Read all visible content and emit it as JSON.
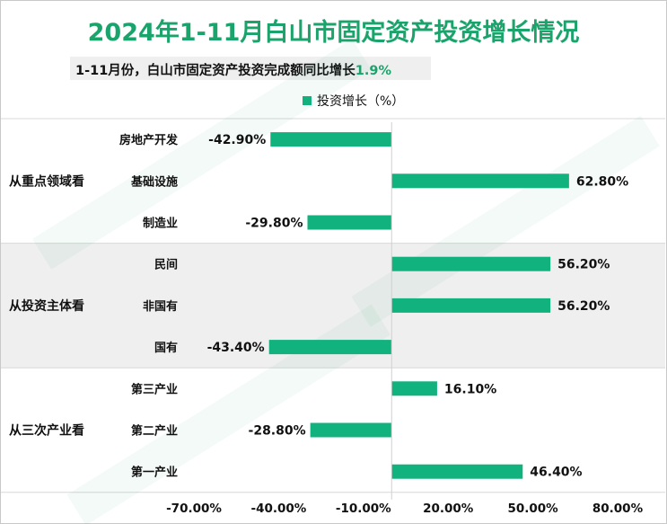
{
  "title": "2024年1-11月白山市固定资产投资增长情况",
  "subtitle": {
    "text": "1-11月份，白山市固定资产投资完成额同比增长",
    "highlight": "1.9%"
  },
  "colors": {
    "bar": "#12b27f",
    "title": "#1aa36a",
    "band": "#efefef"
  },
  "chart_data": {
    "type": "bar",
    "orientation": "horizontal",
    "series": [
      {
        "name": "投资增长（%）",
        "values": [
          -42.9,
          62.8,
          -29.8,
          56.2,
          56.2,
          -43.4,
          16.1,
          -28.8,
          46.4
        ]
      }
    ],
    "categories": [
      "房地产开发",
      "基础设施",
      "制造业",
      "民间",
      "非国有",
      "国有",
      "第三产业",
      "第二产业",
      "第一产业"
    ],
    "groups": [
      {
        "label": "从重点领域看",
        "categories": [
          "房地产开发",
          "基础设施",
          "制造业"
        ]
      },
      {
        "label": "从投资主体看",
        "categories": [
          "民间",
          "非国有",
          "国有"
        ]
      },
      {
        "label": "从三次产业看",
        "categories": [
          "第三产业",
          "第二产业",
          "第一产业"
        ]
      }
    ],
    "value_labels": [
      "-42.90%",
      "62.80%",
      "-29.80%",
      "56.20%",
      "56.20%",
      "-43.40%",
      "16.10%",
      "-28.80%",
      "46.40%"
    ],
    "x_ticks": [
      "-70.00%",
      "-40.00%",
      "-10.00%",
      "20.00%",
      "50.00%",
      "80.00%"
    ],
    "xlim": [
      -70,
      80
    ],
    "legend_position": "top-center"
  }
}
